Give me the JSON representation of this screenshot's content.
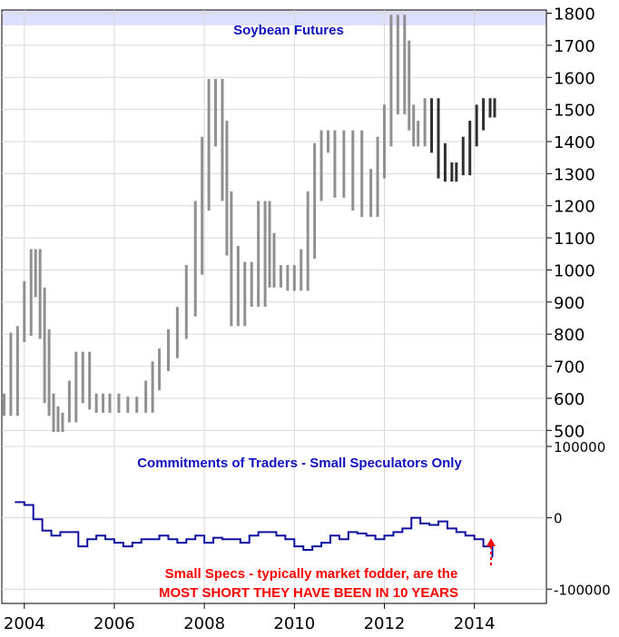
{
  "chart_data": [
    {
      "type": "bar",
      "subtype": "ohlc",
      "title": "Soybean Futures",
      "xlabel": "",
      "ylabel": "",
      "ylim": [
        450,
        1810
      ],
      "y_ticks": [
        "500",
        "600",
        "700",
        "800",
        "900",
        "1000",
        "1100",
        "1200",
        "1300",
        "1400",
        "1500",
        "1600",
        "1700",
        "1800"
      ],
      "x_ticks": [
        "2004",
        "2006",
        "2008",
        "2010",
        "2012",
        "2014"
      ],
      "xlim": [
        2003.5,
        2015.6
      ],
      "grid": true,
      "colors": {
        "pre2013_bars": "#909090",
        "post2013_bars": "#303030",
        "highlight_band": "#dde0ff"
      },
      "series": [
        {
          "x": [
            2003.55,
            2003.7,
            2003.85,
            2004.0,
            2004.15,
            2004.25,
            2004.35,
            2004.45,
            2004.55,
            2004.65,
            2004.75,
            2004.85,
            2005.0,
            2005.15,
            2005.3,
            2005.45,
            2005.6,
            2005.75,
            2005.9,
            2006.1,
            2006.3,
            2006.5,
            2006.7,
            2006.85,
            2007.0,
            2007.2,
            2007.4,
            2007.6,
            2007.8,
            2007.95,
            2008.1,
            2008.25,
            2008.4,
            2008.5,
            2008.6,
            2008.75,
            2008.9,
            2009.05,
            2009.2,
            2009.35,
            2009.45,
            2009.55,
            2009.7,
            2009.85,
            2010.0,
            2010.15,
            2010.3,
            2010.45,
            2010.6,
            2010.75,
            2010.9,
            2011.1,
            2011.3,
            2011.5,
            2011.7,
            2011.85,
            2012.0,
            2012.15,
            2012.3,
            2012.45,
            2012.55,
            2012.65,
            2012.75,
            2012.9,
            2013.05,
            2013.2,
            2013.35,
            2013.5,
            2013.6,
            2013.75,
            2013.9,
            2014.05,
            2014.2,
            2014.35,
            2014.45
          ],
          "values": [
            600,
            560,
            790,
            810,
            950,
            1050,
            930,
            800,
            600,
            560,
            510,
            540,
            540,
            640,
            730,
            600,
            580,
            570,
            600,
            590,
            570,
            590,
            570,
            640,
            700,
            740,
            800,
            870,
            1000,
            1200,
            1400,
            1580,
            1450,
            1230,
            1060,
            840,
            900,
            1010,
            900,
            1200,
            1100,
            960,
            960,
            1000,
            950,
            950,
            1050,
            1230,
            1380,
            1420,
            1380,
            1240,
            1420,
            1200,
            1180,
            1300,
            1400,
            1500,
            1780,
            1700,
            1500,
            1450,
            1400,
            1450,
            1520,
            1380,
            1300,
            1290,
            1320,
            1310,
            1400,
            1450,
            1500,
            1520,
            1490
          ]
        }
      ]
    },
    {
      "type": "line",
      "title": "Commitments of Traders - Small Speculators Only",
      "xlabel": "",
      "ylabel": "",
      "ylim": [
        -120000,
        100000
      ],
      "y_ticks": [
        "100000",
        "0",
        "-100000"
      ],
      "grid": true,
      "colors": {
        "line": "#1010a0",
        "accent": "#008000"
      },
      "series": [
        {
          "x": [
            2003.8,
            2004.0,
            2004.2,
            2004.4,
            2004.6,
            2004.8,
            2005.0,
            2005.2,
            2005.4,
            2005.6,
            2005.8,
            2006.0,
            2006.2,
            2006.4,
            2006.6,
            2006.8,
            2007.0,
            2007.2,
            2007.4,
            2007.6,
            2007.8,
            2008.0,
            2008.2,
            2008.4,
            2008.6,
            2008.8,
            2009.0,
            2009.2,
            2009.4,
            2009.6,
            2009.8,
            2010.0,
            2010.2,
            2010.4,
            2010.6,
            2010.8,
            2011.0,
            2011.2,
            2011.4,
            2011.6,
            2011.8,
            2012.0,
            2012.2,
            2012.4,
            2012.6,
            2012.8,
            2013.0,
            2013.2,
            2013.4,
            2013.6,
            2013.8,
            2014.0,
            2014.2,
            2014.4
          ],
          "values": [
            22000,
            18000,
            -2000,
            -18000,
            -25000,
            -20000,
            -20000,
            -40000,
            -30000,
            -25000,
            -30000,
            -35000,
            -40000,
            -35000,
            -30000,
            -30000,
            -25000,
            -30000,
            -35000,
            -30000,
            -25000,
            -35000,
            -28000,
            -30000,
            -30000,
            -35000,
            -25000,
            -20000,
            -20000,
            -25000,
            -30000,
            -40000,
            -45000,
            -40000,
            -35000,
            -25000,
            -30000,
            -20000,
            -22000,
            -25000,
            -30000,
            -25000,
            -20000,
            -15000,
            0,
            -8000,
            -10000,
            -5000,
            -15000,
            -20000,
            -25000,
            -30000,
            -40000,
            -55000
          ]
        }
      ],
      "annotations": [
        "Small Specs - typically market fodder, are the",
        "MOST SHORT THEY HAVE BEEN IN 10 YEARS"
      ]
    }
  ]
}
